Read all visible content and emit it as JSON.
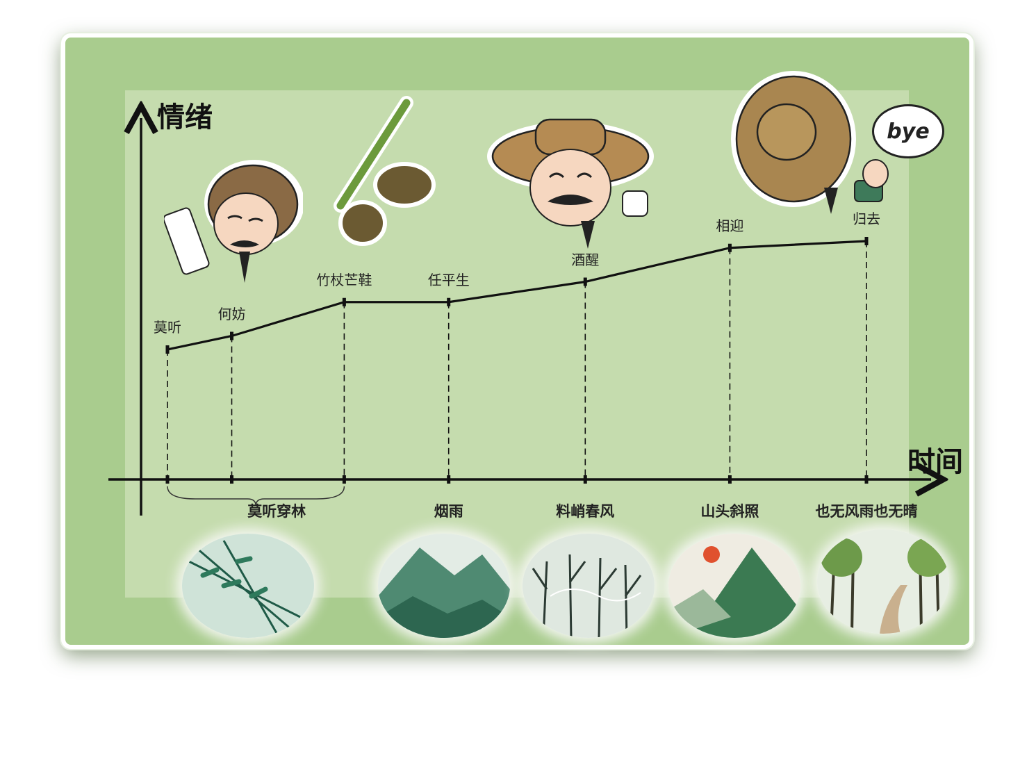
{
  "chart_data": {
    "type": "line",
    "y_axis_label": "情绪",
    "x_axis_label": "时间",
    "points": [
      {
        "label": "莫听",
        "x": 0,
        "y": 1.0
      },
      {
        "label": "何妨",
        "x": 0.8,
        "y": 1.1
      },
      {
        "label": "竹杖芒鞋",
        "x": 2.2,
        "y": 1.35
      },
      {
        "label": "任平生",
        "x": 3.5,
        "y": 1.35
      },
      {
        "label": "酒醒",
        "x": 5.2,
        "y": 1.5
      },
      {
        "label": "相迎",
        "x": 7.0,
        "y": 1.75
      },
      {
        "label": "归去",
        "x": 8.7,
        "y": 1.8
      }
    ],
    "x_ticks": [
      {
        "label": "莫听穿林",
        "span": [
          0,
          2.2
        ]
      },
      {
        "label": "烟雨",
        "at": 3.5
      },
      {
        "label": "料峭春风",
        "at": 5.2
      },
      {
        "label": "山头斜照",
        "at": 7.0
      },
      {
        "label": "也无风雨也无晴",
        "at": 8.7
      }
    ],
    "grid": false
  },
  "sticker_text": {
    "bye": "bye"
  },
  "colors": {
    "background": "#a9cc8e",
    "panel": "#c6dcb0",
    "line": "#111111"
  },
  "icons": [
    "scholar-reading-icon",
    "bamboo-staff-and-straw-sandals-icon",
    "scholar-laughing-icon",
    "scholar-waving-bye-icon",
    "bamboo-rain-scene",
    "misty-mountain-scene",
    "bare-trees-wind-scene",
    "sunset-mountain-scene",
    "tree-lined-path-scene"
  ]
}
